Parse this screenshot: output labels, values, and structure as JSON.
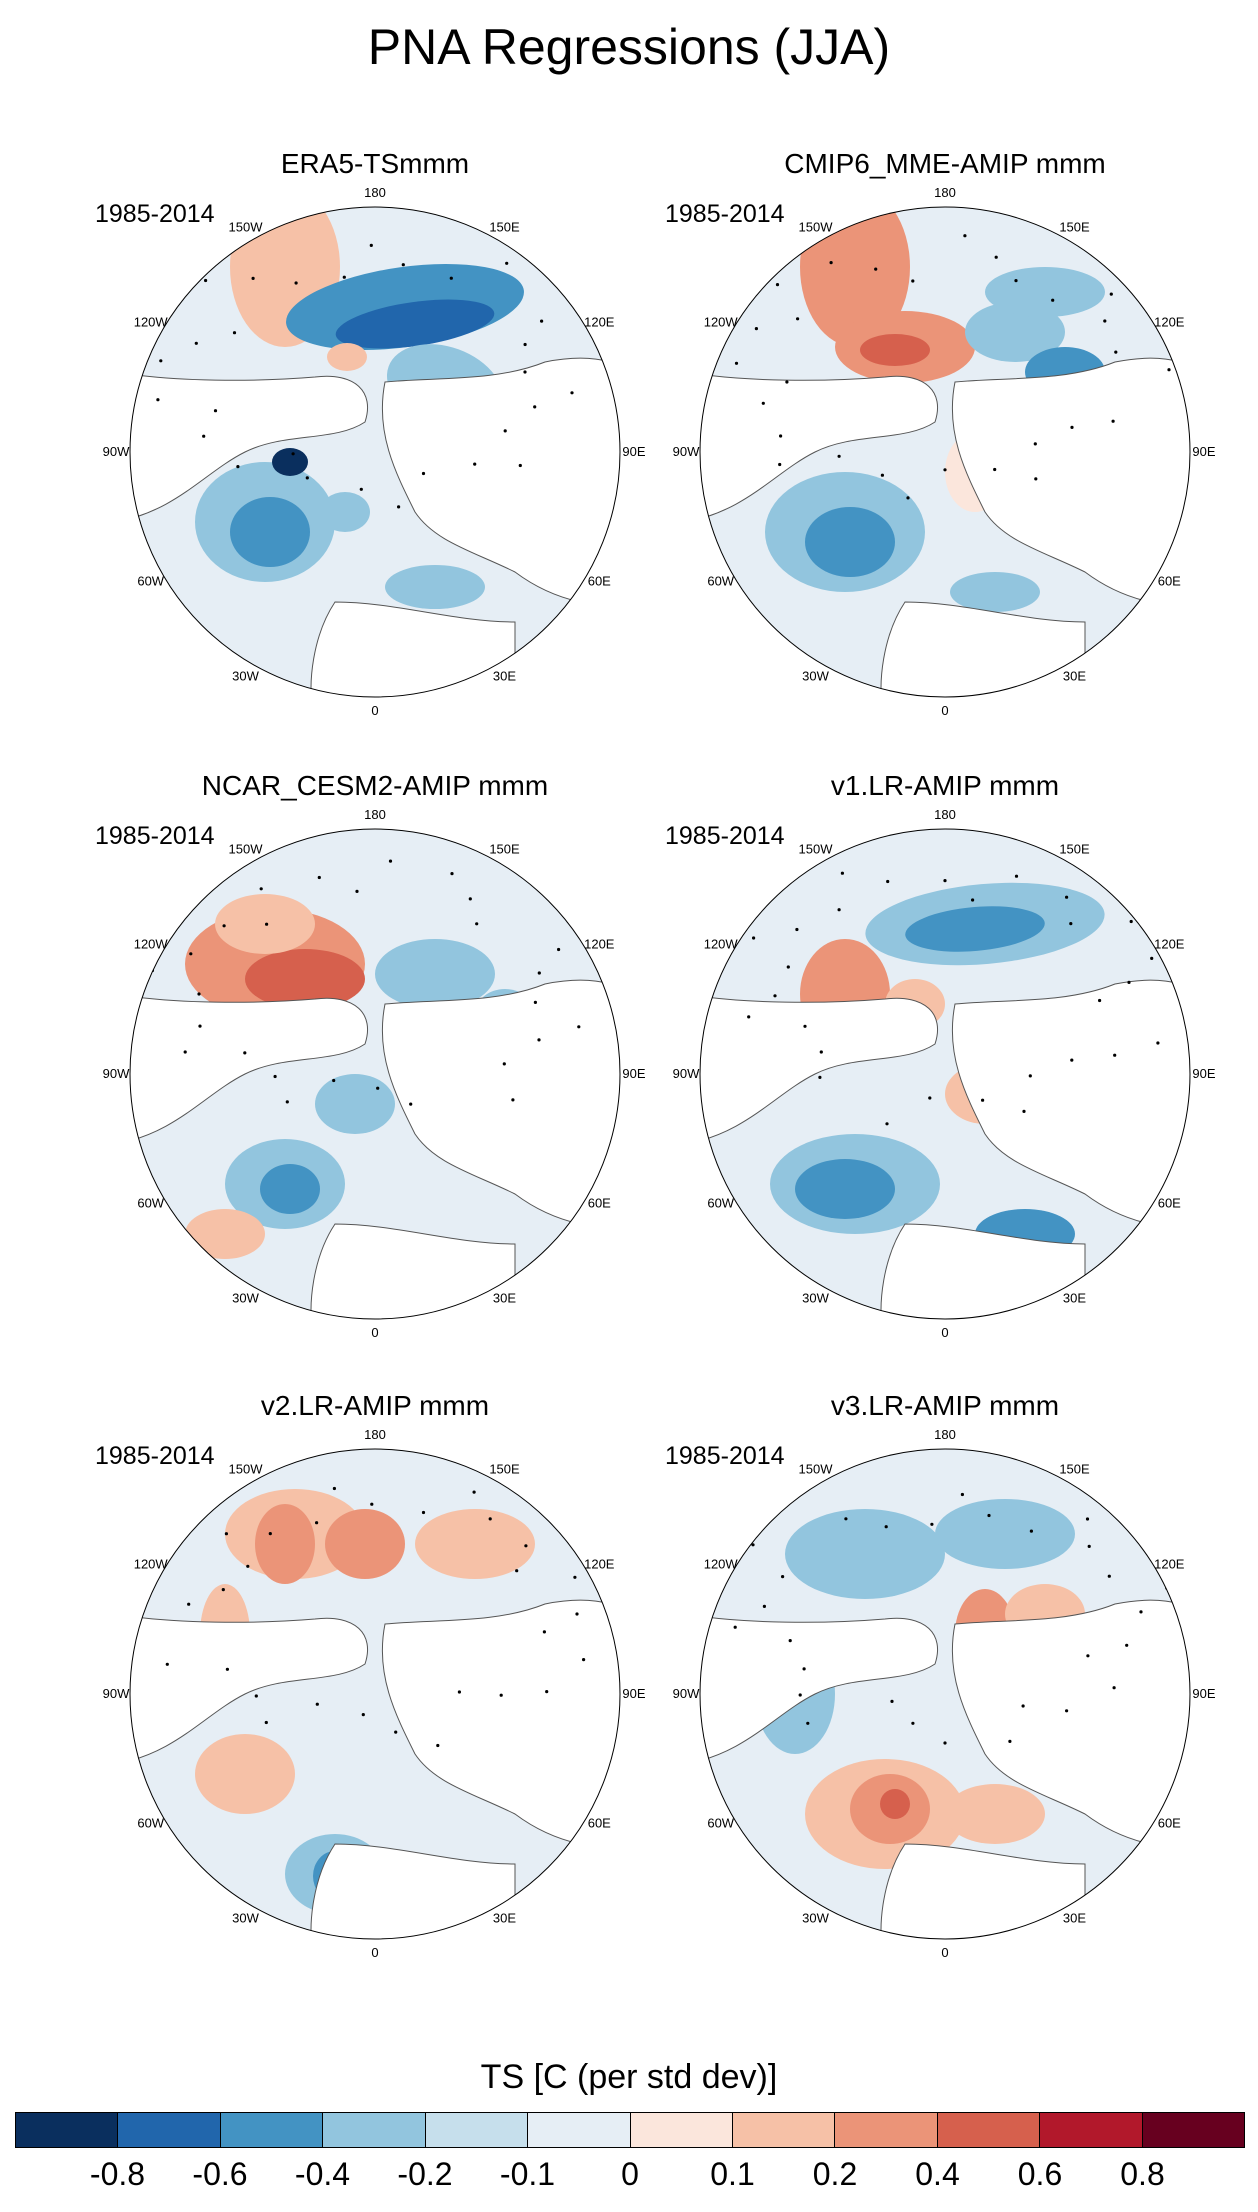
{
  "title": "PNA Regressions (JJA)",
  "lon_labels": [
    "180",
    "150E",
    "120E",
    "90E",
    "60E",
    "30E",
    "0",
    "30W",
    "60W",
    "90W",
    "120W",
    "150W"
  ],
  "panels": [
    {
      "title": "ERA5-TSmmm",
      "period": "1985-2014"
    },
    {
      "title": "CMIP6_MME-AMIP  mmm",
      "period": "1985-2014"
    },
    {
      "title": "NCAR_CESM2-AMIP  mmm",
      "period": "1985-2014"
    },
    {
      "title": "v1.LR-AMIP  mmm",
      "period": "1985-2014"
    },
    {
      "title": "v2.LR-AMIP  mmm",
      "period": "1985-2014"
    },
    {
      "title": "v3.LR-AMIP  mmm",
      "period": "1985-2014"
    }
  ],
  "colorbar": {
    "title": "TS [C (per std dev)]",
    "ticks": [
      "-0.8",
      "-0.6",
      "-0.4",
      "-0.2",
      "-0.1",
      "0",
      "0.1",
      "0.2",
      "0.4",
      "0.6",
      "0.8"
    ],
    "colors": [
      "#0a2f5e",
      "#2166ac",
      "#4393c3",
      "#92c5de",
      "#c6dfec",
      "#e6eef5",
      "#fbe6dc",
      "#f6c1a7",
      "#eb9478",
      "#d6604d",
      "#b2182b",
      "#67001f"
    ]
  }
}
